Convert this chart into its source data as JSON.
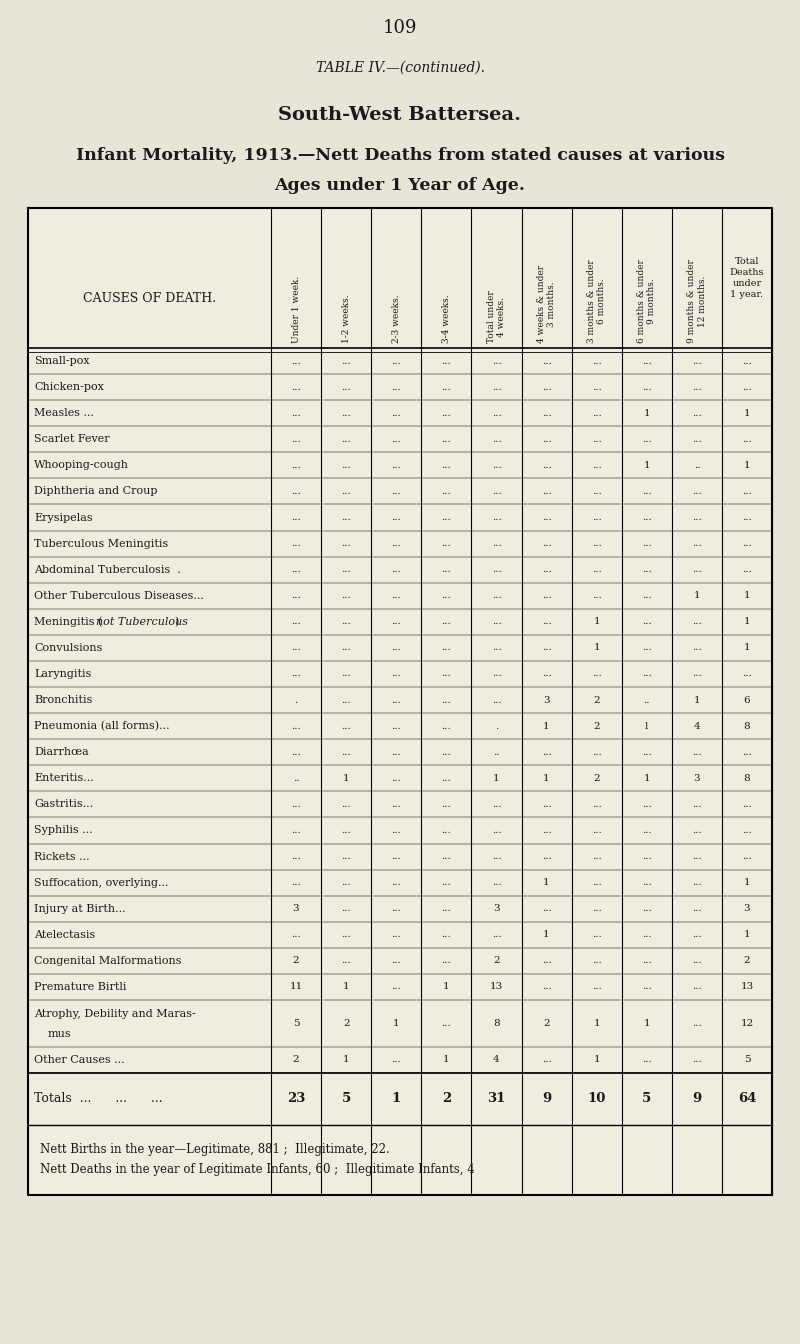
{
  "page_number": "109",
  "table_title": "TABLE IV.—(continued).",
  "subtitle1": "South-West Battersea.",
  "subtitle2": "Infant Mortality, 1913.—Nett Deaths from stated causes at various",
  "subtitle3": "Ages under 1 Year of Age.",
  "col_headers": [
    "Under 1 week.",
    "1-2 weeks.",
    "2-3 weeks.",
    "3-4 weeks.",
    "Total under\n4 weeks.",
    "4 weeks & under\n3 months.",
    "3 months & under\n6 months.",
    "6 months & under\n9 months.",
    "9 months & under\n12 months.",
    "Total\nDeaths\nunder\n1 year."
  ],
  "causes": [
    "Small-pox",
    "Chicken-pox",
    "Measles ...",
    "Scarlet Fever",
    "Whooping-cough",
    "Diphtheria and Croup",
    "Erysipelas",
    "Tuberculous Meningitis",
    "Abdominal Tuberculosis  .",
    "Other Tuberculous Diseases...",
    "Meningitis (not Tuberculous)",
    "Convulsions",
    "Laryngitis",
    "Bronchitis",
    "Pneumonia (all forms)...",
    "Diarrhœa",
    "Enteritis...",
    "Gastritis...",
    "Syphilis ...",
    "Rickets ...",
    "Suffocation, overlying...",
    "Injury at Birth...",
    "Atelectasis",
    "Congenital Malformations",
    "Premature Birtli",
    "Atrophy, Debility and Maras-mus",
    "Other Causes ..."
  ],
  "causes_italic": [
    false,
    false,
    false,
    false,
    false,
    false,
    false,
    false,
    false,
    false,
    true,
    false,
    false,
    false,
    false,
    false,
    false,
    false,
    false,
    false,
    false,
    false,
    false,
    false,
    false,
    false,
    false
  ],
  "data": [
    [
      "...",
      "...",
      "...",
      "...",
      "...",
      "...",
      "...",
      "...",
      "...",
      "..."
    ],
    [
      "...",
      "...",
      "...",
      "...",
      "...",
      "...",
      "...",
      "...",
      "...",
      "..."
    ],
    [
      "...",
      "...",
      "...",
      "...",
      "...",
      "...",
      "...",
      "1",
      "...",
      "1"
    ],
    [
      "...",
      "...",
      "...",
      "...",
      "...",
      "...",
      "...",
      "...",
      "...",
      "..."
    ],
    [
      "...",
      "...",
      "...",
      "...",
      "...",
      "...",
      "...",
      "1",
      "..",
      "1"
    ],
    [
      "...",
      "...",
      "...",
      "...",
      "...",
      "...",
      "...",
      "...",
      "...",
      "..."
    ],
    [
      "...",
      "...",
      "...",
      "...",
      "...",
      "...",
      "...",
      "...",
      "...",
      "..."
    ],
    [
      "...",
      "...",
      "...",
      "...",
      "...",
      "...",
      "...",
      "...",
      "...",
      "..."
    ],
    [
      "...",
      "...",
      "...",
      "...",
      "...",
      "...",
      "...",
      "...",
      "...",
      "..."
    ],
    [
      "...",
      "...",
      "...",
      "...",
      "...",
      "...",
      "...",
      "...",
      "1",
      "1"
    ],
    [
      "...",
      "...",
      "...",
      "...",
      "...",
      "...",
      "1",
      "...",
      "...",
      "1"
    ],
    [
      "...",
      "...",
      "...",
      "...",
      "...",
      "...",
      "1",
      "...",
      "...",
      "1"
    ],
    [
      "...",
      "...",
      "...",
      "...",
      "...",
      "...",
      "...",
      "...",
      "...",
      "..."
    ],
    [
      ".",
      "...",
      "...",
      "...",
      "...",
      "3",
      "2",
      "..",
      "1",
      "6"
    ],
    [
      "...",
      "...",
      "...",
      "...",
      ".",
      "1",
      "2",
      "l",
      "4",
      "8"
    ],
    [
      "...",
      "...",
      "...",
      "...",
      "..",
      "...",
      "...",
      "...",
      "...",
      "..."
    ],
    [
      "..",
      "1",
      "...",
      "...",
      "1",
      "1",
      "2",
      "1",
      "3",
      "8"
    ],
    [
      "...",
      "...",
      "...",
      "...",
      "...",
      "...",
      "...",
      "...",
      "...",
      "..."
    ],
    [
      "...",
      "...",
      "...",
      "...",
      "...",
      "...",
      "...",
      "...",
      "...",
      "..."
    ],
    [
      "...",
      "...",
      "...",
      "...",
      "...",
      "...",
      "...",
      "...",
      "...",
      "..."
    ],
    [
      "...",
      "...",
      "...",
      "...",
      "...",
      "1",
      "...",
      "...",
      "...",
      "1"
    ],
    [
      "3",
      "...",
      "...",
      "...",
      "3",
      "...",
      "...",
      "...",
      "...",
      "3"
    ],
    [
      "...",
      "...",
      "...",
      "...",
      "...",
      "1",
      "...",
      "...",
      "...",
      "1"
    ],
    [
      "2",
      "...",
      "...",
      "...",
      "2",
      "...",
      "...",
      "...",
      "...",
      "2"
    ],
    [
      "11",
      "1",
      "...",
      "1",
      "13",
      "...",
      "...",
      "...",
      "...",
      "13"
    ],
    [
      "5",
      "2",
      "1",
      "...",
      "8",
      "2",
      "1",
      "1",
      "...",
      "12"
    ],
    [
      "2",
      "1",
      "...",
      "1",
      "4",
      "...",
      "1",
      "...",
      "...",
      "5"
    ]
  ],
  "totals": [
    "23",
    "5",
    "1",
    "2",
    "31",
    "9",
    "10",
    "5",
    "9",
    "64"
  ],
  "footnote1": "Nett Births in the year—Legitimate, 881 ;  Illegitimate, 22.",
  "footnote2": "Nett Deaths in the year of Legitimate Infants, 60 ;  Illegitimate Infants, 4",
  "bg_color": "#e8e4d8",
  "text_color": "#1a1a1a",
  "table_bg": "#f0ece0"
}
